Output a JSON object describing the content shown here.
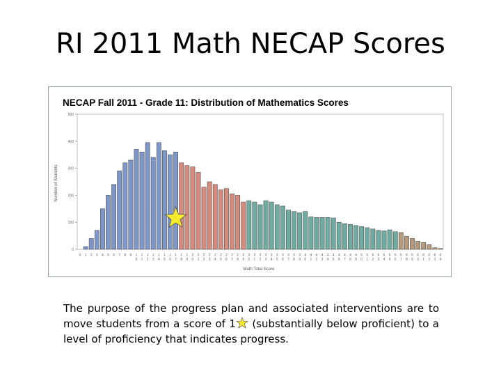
{
  "slide": {
    "title": "RI 2011 Math NECAP Scores",
    "caption_line1": "The purpose of the progress plan and associated interventions are to",
    "caption_line2a": "move students from a score of 1",
    "caption_line2b": "(substantially below proficient) to a",
    "caption_line3": "level of proficiency that indicates progress."
  },
  "colors": {
    "blue": "#7f97c8",
    "red": "#d48b7e",
    "teal": "#6fab9f",
    "tan": "#b69a7c",
    "star": "#f5ea2b"
  },
  "chart_data": {
    "type": "bar",
    "title": "NECAP Fall 2011 - Grade 11: Distribution of Mathematics Scores",
    "xlabel": "Math Total Score",
    "ylabel": "Number of Students",
    "ylim": [
      0,
      500
    ],
    "yticks": [
      0,
      100,
      200,
      300,
      400,
      500
    ],
    "grid": false,
    "categories": [
      "0",
      "1",
      "2",
      "3",
      "4",
      "5",
      "6",
      "7",
      "8",
      "9",
      "10",
      "11",
      "12",
      "13",
      "14",
      "15",
      "16",
      "17",
      "18",
      "19",
      "20",
      "21",
      "22",
      "23",
      "24",
      "25",
      "26",
      "27",
      "28",
      "29",
      "30",
      "31",
      "32",
      "33",
      "34",
      "35",
      "36",
      "37",
      "38",
      "39",
      "40",
      "41",
      "42",
      "43",
      "44",
      "45",
      "46",
      "47",
      "48",
      "49",
      "50",
      "51",
      "52",
      "53",
      "54",
      "55",
      "56",
      "57",
      "58",
      "59",
      "60",
      "61",
      "62",
      "63",
      "64"
    ],
    "series": [
      {
        "values": [
          0,
          10,
          40,
          70,
          150,
          200,
          240,
          290,
          320,
          330,
          370,
          360,
          395,
          340,
          395,
          365,
          350,
          360,
          320,
          310,
          305,
          285,
          230,
          250,
          240,
          220,
          225,
          205,
          200,
          175,
          180,
          175,
          165,
          180,
          175,
          165,
          160,
          145,
          140,
          135,
          140,
          120,
          118,
          118,
          118,
          116,
          100,
          95,
          92,
          88,
          84,
          80,
          75,
          70,
          68,
          72,
          65,
          62,
          48,
          40,
          30,
          25,
          17,
          6,
          3
        ],
        "band": [
          "blue",
          "blue",
          "blue",
          "blue",
          "blue",
          "blue",
          "blue",
          "blue",
          "blue",
          "blue",
          "blue",
          "blue",
          "blue",
          "blue",
          "blue",
          "blue",
          "blue",
          "blue",
          "red",
          "red",
          "red",
          "red",
          "red",
          "red",
          "red",
          "red",
          "red",
          "red",
          "red",
          "red",
          "teal",
          "teal",
          "teal",
          "teal",
          "teal",
          "teal",
          "teal",
          "teal",
          "teal",
          "teal",
          "teal",
          "teal",
          "teal",
          "teal",
          "teal",
          "teal",
          "teal",
          "teal",
          "teal",
          "teal",
          "teal",
          "teal",
          "teal",
          "teal",
          "teal",
          "teal",
          "teal",
          "tan",
          "tan",
          "tan",
          "tan",
          "tan",
          "tan",
          "tan",
          "tan"
        ]
      }
    ],
    "star_at_category": "17"
  }
}
